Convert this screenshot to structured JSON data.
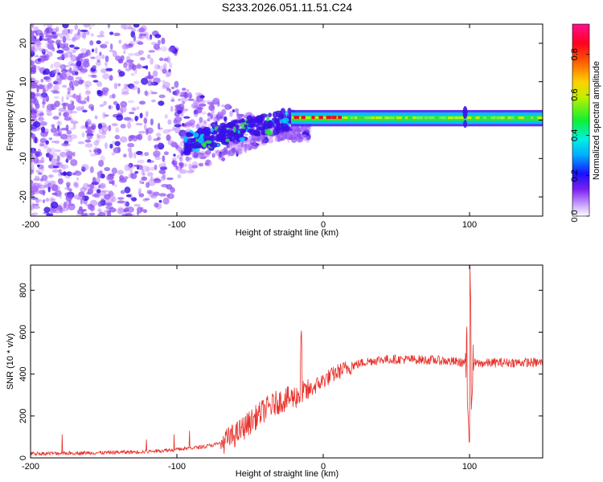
{
  "title": "S233.2026.051.11.51.C24",
  "colors": {
    "snr_line": "#e8302a",
    "spectrogram_low": "#b070ff",
    "spectrogram_mid": "#3a10e8",
    "band_core": "#2ee04a",
    "band_peak": "#e81020",
    "axis": "#000000"
  },
  "chart_data": [
    {
      "type": "heatmap",
      "title": "S233.2026.051.11.51.C24",
      "xlabel": "Height of straight line (km)",
      "ylabel": "Frequency (Hz)",
      "xlim": [
        -200,
        150
      ],
      "ylim": [
        -25,
        25
      ],
      "xticks": [
        -200,
        -100,
        0,
        100
      ],
      "yticks": [
        -20,
        -10,
        0,
        10,
        20
      ],
      "colorbar": {
        "label": "Normalized spectral amplitude",
        "range": [
          0,
          0.95
        ],
        "ticks": [
          0.0,
          0.2,
          0.4,
          0.6,
          0.8
        ],
        "colormap": "hsv-rainbow"
      },
      "features": {
        "scatter_region_km": [
          -200,
          -20
        ],
        "band_start_km": -22,
        "band_center_hz": 0.5,
        "band_halfwidth_hz": 1.5,
        "spike_at_km": 97
      }
    },
    {
      "type": "line",
      "xlabel": "Height of straight line (km)",
      "ylabel": "SNR (10 * v/v)",
      "xlim": [
        -200,
        150
      ],
      "ylim": [
        0,
        920
      ],
      "xticks": [
        -200,
        -100,
        0,
        100
      ],
      "yticks": [
        0,
        200,
        400,
        600,
        800
      ],
      "series": [
        {
          "name": "SNR",
          "x": [
            -200,
            -150,
            -120,
            -100,
            -80,
            -70,
            -60,
            -50,
            -40,
            -30,
            -20,
            -10,
            0,
            10,
            20,
            30,
            40,
            60,
            80,
            95,
            100,
            105,
            120,
            150
          ],
          "values": [
            20,
            25,
            30,
            40,
            55,
            70,
            110,
            170,
            230,
            270,
            290,
            320,
            370,
            410,
            440,
            460,
            470,
            470,
            465,
            455,
            460,
            450,
            455,
            455
          ]
        }
      ],
      "annotations": {
        "spike_near_km": -15,
        "spike_peak": 635,
        "spike2_near_km": 100,
        "spike2_peak": 920,
        "spike2_min": 75
      }
    }
  ]
}
